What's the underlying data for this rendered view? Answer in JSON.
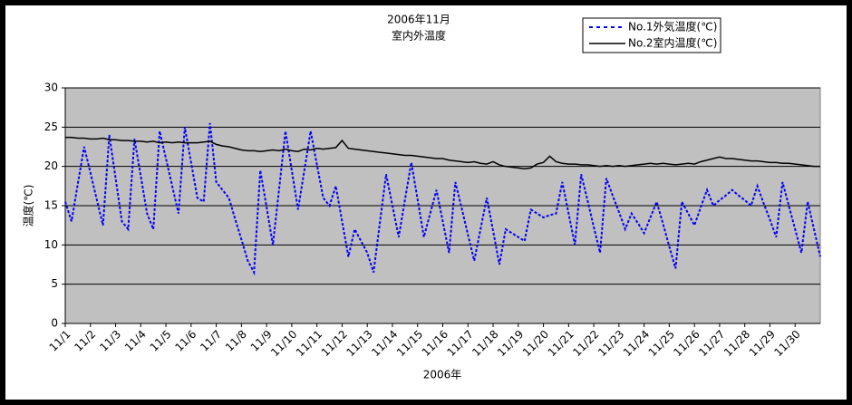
{
  "chart_data": {
    "type": "line",
    "title": "2006年11月",
    "subtitle": "室内外温度",
    "x_label": "2006年",
    "y_label": "温度(℃)",
    "categories": [
      "11/1",
      null,
      null,
      null,
      "11/2",
      null,
      null,
      null,
      "11/3",
      null,
      null,
      null,
      "11/4",
      null,
      null,
      null,
      "11/5",
      null,
      null,
      null,
      "11/6",
      null,
      null,
      null,
      "11/7",
      null,
      null,
      null,
      "11/8",
      null,
      null,
      null,
      "11/9",
      null,
      null,
      null,
      "11/10",
      null,
      null,
      null,
      "11/11",
      null,
      null,
      null,
      "11/12",
      null,
      null,
      null,
      "11/13",
      null,
      null,
      null,
      "11/14",
      null,
      null,
      null,
      "11/15",
      null,
      null,
      null,
      "11/16",
      null,
      null,
      null,
      "11/17",
      null,
      null,
      null,
      "11/18",
      null,
      null,
      null,
      "11/19",
      null,
      null,
      null,
      "11/20",
      null,
      null,
      null,
      "11/21",
      null,
      null,
      null,
      "11/22",
      null,
      null,
      null,
      "11/23",
      null,
      null,
      null,
      "11/24",
      null,
      null,
      null,
      "11/25",
      null,
      null,
      null,
      "11/26",
      null,
      null,
      null,
      "11/27",
      null,
      null,
      null,
      "11/28",
      null,
      null,
      null,
      "11/29",
      null,
      null,
      null,
      "11/30",
      null,
      null,
      null,
      null
    ],
    "series": [
      {
        "name": "No.1外気温度(℃)",
        "color": "#0000ff",
        "line_style": "dashed",
        "values": [
          15.5,
          13,
          17.8,
          22.5,
          19.2,
          15.8,
          12.5,
          24,
          18.5,
          13,
          12,
          23.5,
          18.8,
          14,
          12,
          24.5,
          21,
          17.5,
          14,
          25,
          20.5,
          16,
          15.5,
          25.5,
          18,
          17,
          16,
          13.3,
          10.7,
          8,
          6.5,
          19.5,
          14.8,
          10,
          17.2,
          24.5,
          19.5,
          14.5,
          19.5,
          24.5,
          20.2,
          16,
          15,
          17.5,
          13,
          8.5,
          12,
          10.5,
          9,
          6.5,
          12.8,
          19,
          15,
          11,
          15.8,
          20.5,
          15.8,
          11,
          14,
          17,
          13,
          9,
          18,
          14.7,
          11.3,
          8,
          12,
          16,
          11.8,
          7.5,
          12,
          11.5,
          11,
          10.5,
          14.5,
          14,
          13.5,
          13.8,
          14,
          18,
          14,
          10,
          19,
          15.7,
          12.3,
          9,
          18.5,
          16.3,
          14.2,
          12,
          14,
          12.8,
          11.5,
          13.5,
          15.5,
          12.7,
          9.8,
          7,
          15.5,
          14,
          12.5,
          14.8,
          17,
          15,
          15.7,
          16.3,
          17,
          16.3,
          15.7,
          15,
          17.5,
          15.3,
          13.2,
          11,
          18,
          15,
          12,
          9,
          15.5,
          12,
          8.5
        ]
      },
      {
        "name": "No.2室内温度(℃)",
        "color": "#000000",
        "line_style": "solid",
        "values": [
          23.7,
          23.7,
          23.6,
          23.6,
          23.5,
          23.5,
          23.6,
          23.4,
          23.4,
          23.3,
          23.3,
          23.2,
          23.2,
          23.1,
          23.2,
          23.0,
          23.1,
          23.0,
          23.1,
          23.0,
          23.0,
          23.0,
          23.1,
          23.2,
          22.8,
          22.6,
          22.5,
          22.3,
          22.1,
          22.0,
          22.0,
          21.9,
          22.0,
          22.1,
          22.0,
          22.2,
          22.0,
          21.9,
          22.2,
          22.1,
          22.3,
          22.2,
          22.3,
          22.4,
          23.3,
          22.3,
          22.2,
          22.1,
          22.0,
          21.9,
          21.8,
          21.7,
          21.6,
          21.5,
          21.4,
          21.4,
          21.3,
          21.2,
          21.1,
          21.0,
          21.0,
          20.8,
          20.7,
          20.6,
          20.5,
          20.6,
          20.4,
          20.3,
          20.6,
          20.2,
          20.0,
          19.9,
          19.8,
          19.7,
          19.8,
          20.3,
          20.5,
          21.3,
          20.6,
          20.4,
          20.3,
          20.3,
          20.2,
          20.2,
          20.1,
          20.0,
          20.1,
          20.0,
          20.1,
          20.0,
          20.1,
          20.2,
          20.3,
          20.4,
          20.3,
          20.4,
          20.3,
          20.2,
          20.3,
          20.4,
          20.3,
          20.6,
          20.8,
          21.0,
          21.2,
          21.0,
          21.0,
          20.9,
          20.8,
          20.7,
          20.7,
          20.6,
          20.5,
          20.5,
          20.4,
          20.4,
          20.3,
          20.2,
          20.1,
          20.0,
          20.0
        ]
      }
    ],
    "ylim": [
      0,
      30
    ],
    "yticks": [
      0,
      5,
      10,
      15,
      20,
      25,
      30
    ],
    "grid": true,
    "legend": "top-right",
    "plot_background": "#c0c0c0"
  }
}
